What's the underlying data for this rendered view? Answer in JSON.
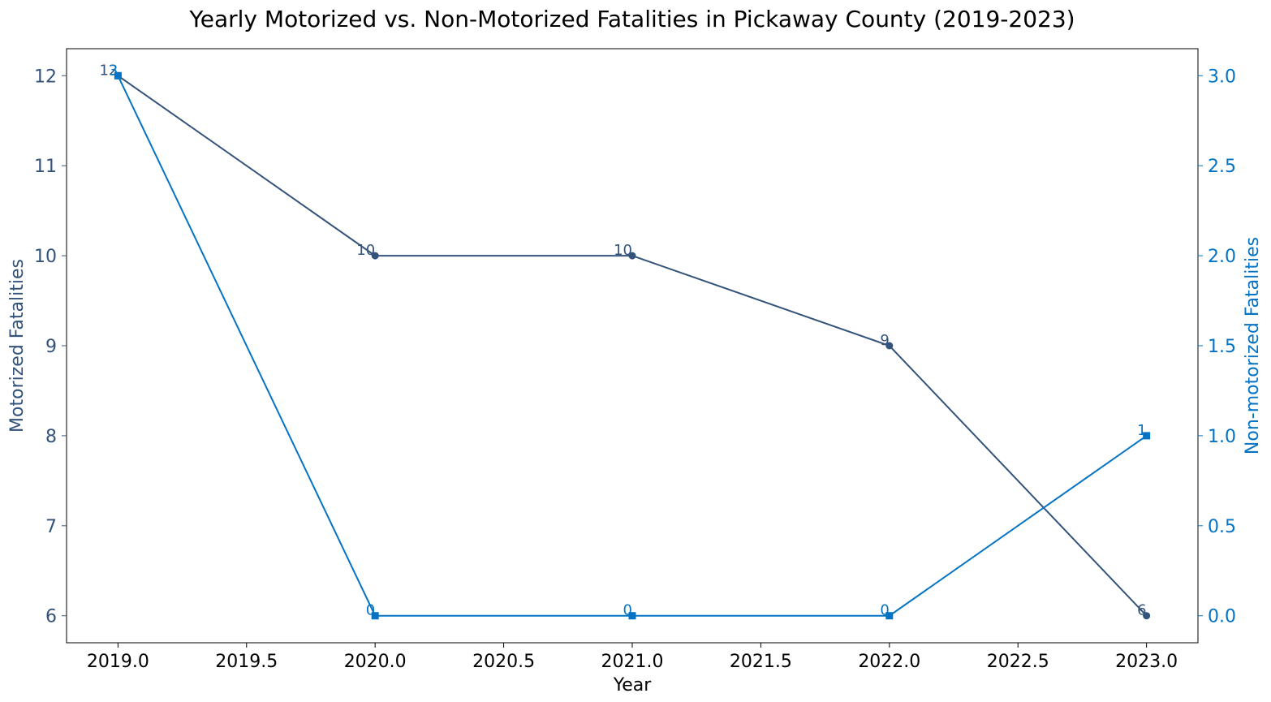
{
  "chart_data": {
    "type": "line",
    "title": "Yearly Motorized vs. Non-Motorized Fatalities in Pickaway County (2019-2023)",
    "xlabel": "Year",
    "ylabel_left": "Motorized Fatalities",
    "ylabel_right": "Non-motorized Fatalities",
    "xlim": [
      2018.8,
      2023.2
    ],
    "ylim_left": [
      5.7,
      12.3
    ],
    "ylim_right": [
      -0.15,
      3.15
    ],
    "x_ticks": [
      "2019.0",
      "2019.5",
      "2020.0",
      "2020.5",
      "2021.0",
      "2021.5",
      "2022.0",
      "2022.5",
      "2023.0"
    ],
    "y_left_ticks": [
      "6",
      "7",
      "8",
      "9",
      "10",
      "11",
      "12"
    ],
    "y_right_ticks": [
      "0.0",
      "0.5",
      "1.0",
      "1.5",
      "2.0",
      "2.5",
      "3.0"
    ],
    "grid": false,
    "legend": "none",
    "x": [
      2019,
      2020,
      2021,
      2022,
      2023
    ],
    "series": [
      {
        "axis": "left",
        "marker": "circle",
        "color": "#34537a",
        "values": [
          12,
          10,
          10,
          9,
          6
        ],
        "labels": [
          "12",
          "10",
          "10",
          "9",
          "6"
        ]
      },
      {
        "axis": "right",
        "marker": "square",
        "color": "#0473c4",
        "values": [
          3,
          0,
          0,
          0,
          1
        ],
        "labels": [
          "3",
          "0",
          "0",
          "0",
          "1"
        ]
      }
    ]
  }
}
